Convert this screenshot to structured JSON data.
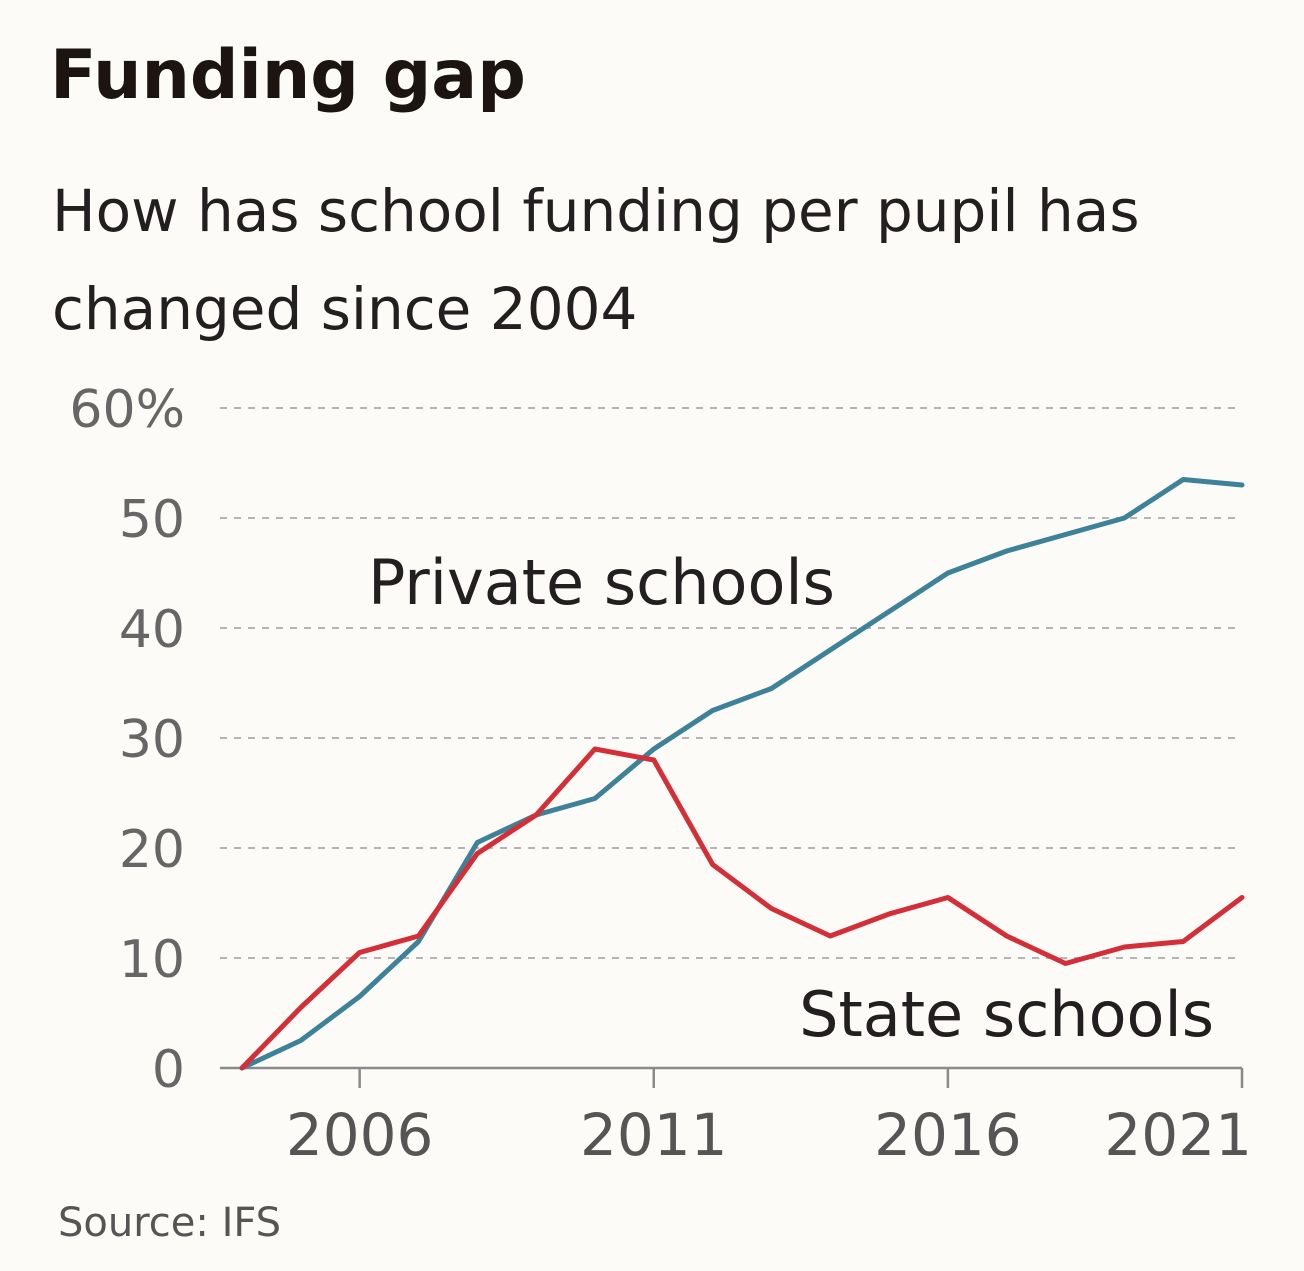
{
  "title": "Funding gap",
  "subtitle": "How has school funding per pupil has changed since 2004",
  "source": "Source: IFS",
  "chart_data": {
    "type": "line",
    "title": "Funding gap",
    "subtitle": "How has school funding per pupil has changed since 2004",
    "ylim": [
      0,
      60
    ],
    "xlim": [
      2004,
      2021
    ],
    "y_ticks": [
      0,
      10,
      20,
      30,
      40,
      50,
      60
    ],
    "y_tick_labels": [
      "0",
      "10",
      "20",
      "30",
      "40",
      "50",
      "60%"
    ],
    "x_ticks": [
      2006,
      2011,
      2016,
      2021
    ],
    "x_tick_labels": [
      "2006",
      "2011",
      "2016",
      "2021"
    ],
    "grid": "horizontal dashed",
    "legend": "inline labels",
    "series": [
      {
        "name": "Private schools",
        "color": "#3d8299",
        "x": [
          2004,
          2005,
          2006,
          2007,
          2008,
          2009,
          2010,
          2011,
          2012,
          2013,
          2014,
          2015,
          2016,
          2017,
          2018,
          2019,
          2020,
          2021
        ],
        "values": [
          0,
          2.5,
          6.5,
          11.5,
          20.5,
          23,
          24.5,
          29,
          32.5,
          34.5,
          38,
          41.5,
          45,
          47,
          48.5,
          50,
          53.5,
          53
        ]
      },
      {
        "name": "State schools",
        "color": "#d42e36",
        "x": [
          2004,
          2005,
          2006,
          2007,
          2008,
          2009,
          2010,
          2011,
          2012,
          2013,
          2014,
          2015,
          2016,
          2017,
          2018,
          2019,
          2020,
          2021
        ],
        "values": [
          0,
          5.5,
          10.5,
          12,
          19.5,
          23,
          29,
          28,
          18.5,
          14.5,
          12,
          14,
          15.5,
          12,
          9.5,
          11,
          11.5,
          15.5
        ]
      }
    ]
  }
}
